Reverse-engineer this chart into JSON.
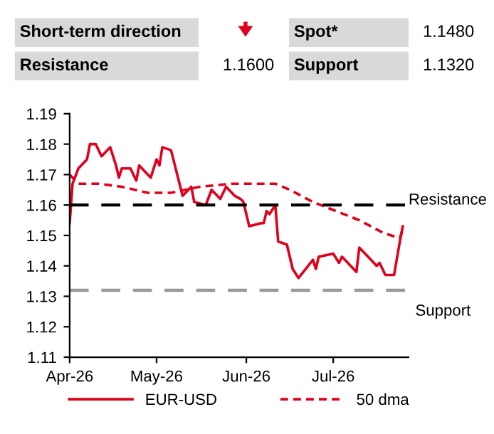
{
  "chart_data": {
    "type": "line",
    "annotations": [
      "Short-term direction",
      "Spot*",
      "1.1480",
      "Resistance",
      "1.1600",
      "Support",
      "1.1320"
    ],
    "series": [
      {
        "name": "EUR-USD",
        "color": "#e0001b",
        "line_style": "solid",
        "x": [
          "2026-04-01",
          "2026-04-02",
          "2026-04-04",
          "2026-04-07",
          "2026-04-08",
          "2026-04-10",
          "2026-04-12",
          "2026-04-15",
          "2026-04-17",
          "2026-04-18",
          "2026-04-19",
          "2026-04-22",
          "2026-04-24",
          "2026-04-25",
          "2026-04-29",
          "2026-05-01",
          "2026-05-02",
          "2026-05-03",
          "2026-05-06",
          "2026-05-10",
          "2026-05-13",
          "2026-05-14",
          "2026-05-18",
          "2026-05-20",
          "2026-05-23",
          "2026-05-25",
          "2026-05-28",
          "2026-05-30",
          "2026-05-31",
          "2026-06-02",
          "2026-06-06",
          "2026-06-07",
          "2026-06-08",
          "2026-06-09",
          "2026-06-11",
          "2026-06-12",
          "2026-06-15",
          "2026-06-17",
          "2026-06-19",
          "2026-06-24",
          "2026-06-25",
          "2026-06-26",
          "2026-07-01",
          "2026-07-03",
          "2026-07-04",
          "2026-07-09",
          "2026-07-10",
          "2026-07-13",
          "2026-07-16",
          "2026-07-17",
          "2026-07-19",
          "2026-07-22",
          "2026-07-24",
          "2026-07-25"
        ],
        "values": [
          1.154,
          1.167,
          1.172,
          1.175,
          1.18,
          1.18,
          1.176,
          1.179,
          1.173,
          1.169,
          1.172,
          1.172,
          1.168,
          1.173,
          1.169,
          1.175,
          1.173,
          1.179,
          1.178,
          1.163,
          1.166,
          1.161,
          1.16,
          1.165,
          1.162,
          1.166,
          1.163,
          1.162,
          1.161,
          1.153,
          1.154,
          1.154,
          1.158,
          1.157,
          1.16,
          1.148,
          1.147,
          1.139,
          1.136,
          1.142,
          1.139,
          1.143,
          1.144,
          1.141,
          1.143,
          1.138,
          1.146,
          1.143,
          1.14,
          1.141,
          1.137,
          1.137,
          1.148,
          1.153
        ]
      },
      {
        "name": "50 dma",
        "color": "#e0001b",
        "line_style": "dashed",
        "x": [
          "2026-04-01",
          "2026-04-04",
          "2026-04-11",
          "2026-04-19",
          "2026-04-28",
          "2026-05-06",
          "2026-05-16",
          "2026-05-27",
          "2026-06-06",
          "2026-06-11",
          "2026-06-16",
          "2026-06-24",
          "2026-07-02",
          "2026-07-10",
          "2026-07-18",
          "2026-07-24",
          "2026-07-25"
        ],
        "values": [
          1.17,
          1.167,
          1.167,
          1.166,
          1.164,
          1.164,
          1.166,
          1.167,
          1.167,
          1.167,
          1.165,
          1.161,
          1.158,
          1.155,
          1.151,
          1.149,
          1.152
        ]
      }
    ],
    "ref_lines": [
      {
        "axis": "y",
        "value": 1.16,
        "label": "Resistance",
        "color": "#000000",
        "line_style": "dashed"
      },
      {
        "axis": "y",
        "value": 1.132,
        "label": "Support",
        "color": "#999999",
        "line_style": "dashed"
      }
    ],
    "xlim": [
      "2026-04-01",
      "2026-07-27"
    ],
    "xticks": [
      {
        "value": "2026-04-01",
        "label": "Apr-26"
      },
      {
        "value": "2026-05-01",
        "label": "May-26"
      },
      {
        "value": "2026-06-01",
        "label": "Jun-26"
      },
      {
        "value": "2026-07-01",
        "label": "Jul-26"
      }
    ],
    "ylim": [
      1.11,
      1.19
    ],
    "yticks": [
      1.11,
      1.12,
      1.13,
      1.14,
      1.15,
      1.16,
      1.17,
      1.18,
      1.19
    ],
    "grid": false,
    "legend": "bottom"
  }
}
